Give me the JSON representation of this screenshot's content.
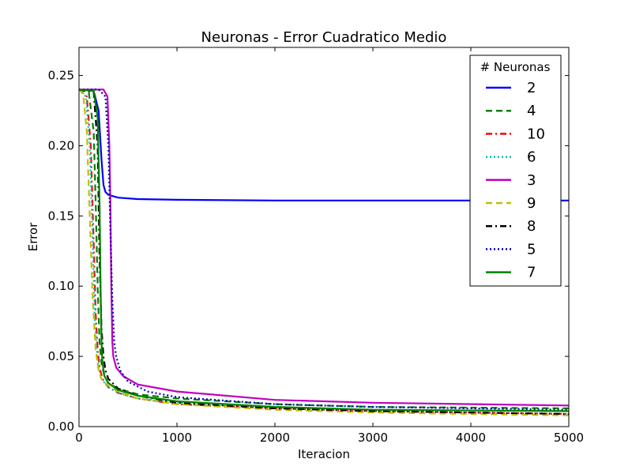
{
  "chart_data": {
    "type": "line",
    "title": "Neuronas - Error Cuadratico Medio",
    "xlabel": "Iteracion",
    "ylabel": "Error",
    "xlim": [
      0,
      5000
    ],
    "ylim": [
      0.0,
      0.27
    ],
    "xticks": [
      0,
      1000,
      2000,
      3000,
      4000,
      5000
    ],
    "xtick_labels": [
      "0",
      "1000",
      "2000",
      "3000",
      "4000",
      "5000"
    ],
    "yticks": [
      0.0,
      0.05,
      0.1,
      0.15,
      0.2,
      0.25
    ],
    "ytick_labels": [
      "0.00",
      "0.05",
      "0.10",
      "0.15",
      "0.20",
      "0.25"
    ],
    "grid": false,
    "legend": {
      "title": "# Neuronas",
      "placement": "top-right"
    },
    "series": [
      {
        "name": "2",
        "color": "#0000ff",
        "dash": "solid",
        "x": [
          0,
          150,
          200,
          230,
          250,
          270,
          300,
          400,
          600,
          1000,
          2000,
          3000,
          5000
        ],
        "y": [
          0.24,
          0.239,
          0.225,
          0.19,
          0.172,
          0.167,
          0.165,
          0.163,
          0.162,
          0.1615,
          0.161,
          0.161,
          0.161
        ]
      },
      {
        "name": "4",
        "color": "#008000",
        "dash": "dashed",
        "x": [
          0,
          100,
          150,
          170,
          190,
          210,
          230,
          260,
          300,
          400,
          600,
          1000,
          2000,
          3000,
          5000
        ],
        "y": [
          0.24,
          0.238,
          0.21,
          0.16,
          0.1,
          0.06,
          0.045,
          0.036,
          0.031,
          0.027,
          0.023,
          0.02,
          0.016,
          0.014,
          0.013
        ]
      },
      {
        "name": "10",
        "color": "#ff0000",
        "dash": "dashdot",
        "x": [
          0,
          80,
          120,
          150,
          170,
          190,
          210,
          240,
          300,
          400,
          600,
          1000,
          2000,
          3000,
          5000
        ],
        "y": [
          0.24,
          0.235,
          0.2,
          0.13,
          0.08,
          0.055,
          0.042,
          0.034,
          0.028,
          0.024,
          0.02,
          0.016,
          0.013,
          0.011,
          0.009
        ]
      },
      {
        "name": "6",
        "color": "#00bfbf",
        "dash": "dotted",
        "x": [
          0,
          70,
          110,
          140,
          160,
          180,
          200,
          230,
          300,
          400,
          600,
          1000,
          2000,
          3000,
          5000
        ],
        "y": [
          0.24,
          0.235,
          0.2,
          0.13,
          0.08,
          0.055,
          0.042,
          0.034,
          0.028,
          0.024,
          0.02,
          0.017,
          0.014,
          0.012,
          0.011
        ]
      },
      {
        "name": "3",
        "color": "#bf00bf",
        "dash": "solid",
        "x": [
          0,
          250,
          290,
          310,
          320,
          330,
          340,
          350,
          380,
          450,
          600,
          1000,
          2000,
          3000,
          5000
        ],
        "y": [
          0.24,
          0.24,
          0.235,
          0.2,
          0.16,
          0.1,
          0.06,
          0.05,
          0.042,
          0.036,
          0.03,
          0.025,
          0.019,
          0.017,
          0.015
        ]
      },
      {
        "name": "9",
        "color": "#bfbf00",
        "dash": "dashed",
        "x": [
          0,
          40,
          80,
          110,
          140,
          170,
          200,
          230,
          300,
          400,
          600,
          1000,
          2000,
          3000,
          5000
        ],
        "y": [
          0.24,
          0.238,
          0.21,
          0.15,
          0.09,
          0.055,
          0.04,
          0.034,
          0.029,
          0.025,
          0.02,
          0.016,
          0.012,
          0.01,
          0.008
        ]
      },
      {
        "name": "8",
        "color": "#000000",
        "dash": "dashdot",
        "x": [
          0,
          150,
          190,
          210,
          230,
          250,
          270,
          300,
          400,
          600,
          1000,
          2000,
          3000,
          5000
        ],
        "y": [
          0.24,
          0.238,
          0.2,
          0.12,
          0.07,
          0.05,
          0.04,
          0.034,
          0.027,
          0.022,
          0.017,
          0.013,
          0.011,
          0.009
        ]
      },
      {
        "name": "5",
        "color": "#0000bf",
        "dash": "dotted",
        "x": [
          0,
          200,
          270,
          300,
          320,
          340,
          360,
          380,
          420,
          500,
          700,
          1000,
          2000,
          3000,
          5000
        ],
        "y": [
          0.24,
          0.24,
          0.235,
          0.2,
          0.14,
          0.09,
          0.06,
          0.05,
          0.04,
          0.032,
          0.025,
          0.021,
          0.016,
          0.014,
          0.012
        ]
      },
      {
        "name": "7",
        "color": "#008000",
        "dash": "solid",
        "x": [
          0,
          150,
          190,
          210,
          220,
          230,
          240,
          260,
          300,
          400,
          600,
          1000,
          2000,
          3000,
          5000
        ],
        "y": [
          0.24,
          0.239,
          0.22,
          0.16,
          0.1,
          0.06,
          0.045,
          0.036,
          0.031,
          0.026,
          0.022,
          0.018,
          0.014,
          0.012,
          0.011
        ]
      }
    ]
  }
}
